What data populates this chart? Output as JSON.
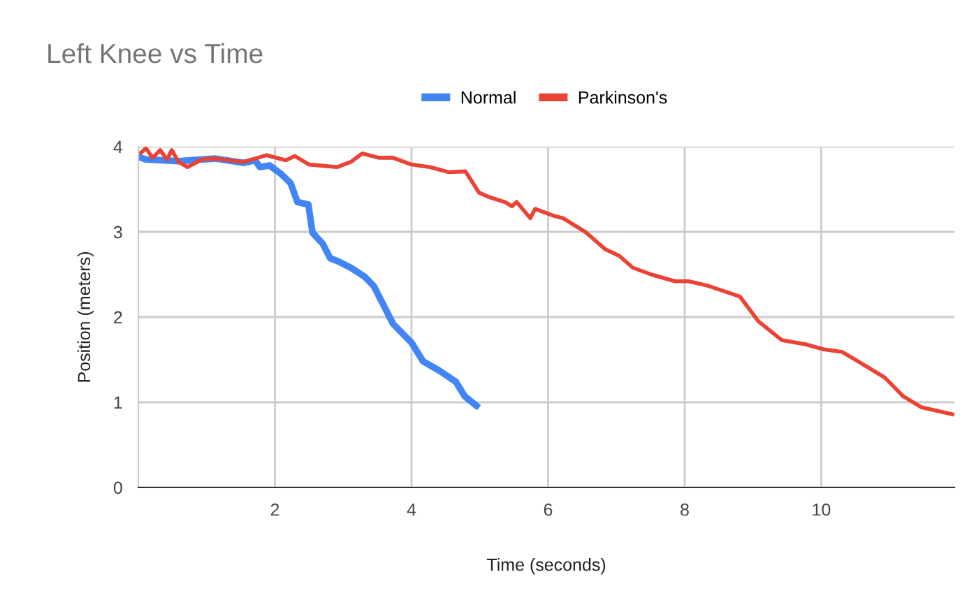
{
  "chart_data": {
    "type": "line",
    "title": "Left Knee vs Time",
    "xlabel": "Time (seconds)",
    "ylabel": "Position (meters)",
    "xlim": [
      0,
      11.95
    ],
    "xticks": [
      2,
      4,
      6,
      8,
      10
    ],
    "ylim": [
      0,
      4
    ],
    "yticks": [
      0,
      1,
      2,
      3,
      4
    ],
    "grid": true,
    "legend": "top",
    "marker": "none",
    "line_style": "solid",
    "series": [
      {
        "name": "Normal",
        "color": "#4285f4",
        "x": [
          0.04,
          0.11,
          0.59,
          1.13,
          1.54,
          1.71,
          1.78,
          1.92,
          2.09,
          2.23,
          2.33,
          2.49,
          2.55,
          2.7,
          2.81,
          2.91,
          3.11,
          3.32,
          3.45,
          3.59,
          3.73,
          4.0,
          4.17,
          4.41,
          4.65,
          4.78,
          4.95
        ],
        "values": [
          3.87,
          3.85,
          3.83,
          3.86,
          3.81,
          3.84,
          3.76,
          3.78,
          3.68,
          3.57,
          3.35,
          3.32,
          2.99,
          2.86,
          2.69,
          2.66,
          2.58,
          2.47,
          2.36,
          2.14,
          1.92,
          1.7,
          1.48,
          1.37,
          1.24,
          1.07,
          0.96
        ]
      },
      {
        "name": "Parkinson's",
        "color": "#ea4335",
        "x": [
          0.04,
          0.11,
          0.21,
          0.32,
          0.42,
          0.49,
          0.59,
          0.72,
          0.93,
          1.13,
          1.54,
          1.75,
          1.88,
          2.16,
          2.29,
          2.5,
          2.91,
          3.11,
          3.28,
          3.52,
          3.73,
          4.0,
          4.27,
          4.55,
          4.79,
          4.99,
          5.13,
          5.37,
          5.47,
          5.54,
          5.74,
          5.81,
          6.08,
          6.22,
          6.56,
          6.83,
          7.04,
          7.24,
          7.51,
          7.86,
          8.06,
          8.33,
          8.81,
          9.08,
          9.42,
          9.77,
          10.04,
          10.31,
          10.58,
          10.93,
          11.2,
          11.47,
          11.92
        ],
        "values": [
          3.93,
          3.98,
          3.87,
          3.96,
          3.85,
          3.96,
          3.82,
          3.76,
          3.85,
          3.86,
          3.82,
          3.87,
          3.9,
          3.84,
          3.89,
          3.79,
          3.76,
          3.82,
          3.92,
          3.87,
          3.87,
          3.79,
          3.76,
          3.7,
          3.71,
          3.46,
          3.41,
          3.35,
          3.3,
          3.35,
          3.16,
          3.27,
          3.19,
          3.16,
          2.99,
          2.8,
          2.72,
          2.58,
          2.5,
          2.42,
          2.42,
          2.37,
          2.24,
          1.95,
          1.73,
          1.68,
          1.62,
          1.59,
          1.46,
          1.29,
          1.07,
          0.94,
          0.86
        ]
      }
    ]
  }
}
